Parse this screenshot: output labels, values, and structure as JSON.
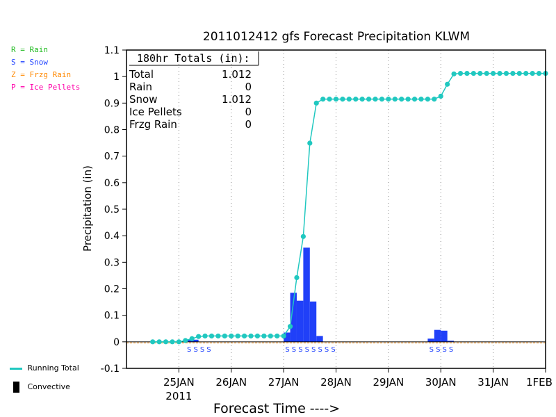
{
  "chart_data": {
    "type": "bar",
    "title": "2011012412 gfs Forecast Precipitation KLWM",
    "xlabel": "Forecast Time ---->",
    "ylabel": "Precipitation (in)",
    "ylim": [
      -0.1,
      1.1
    ],
    "yticks": [
      -0.1,
      0,
      0.1,
      0.2,
      0.3,
      0.4,
      0.5,
      0.6,
      0.7,
      0.8,
      0.9,
      1,
      1.1
    ],
    "ytick_labels": [
      "-0.1",
      "0",
      "0.1",
      "0.2",
      "0.3",
      "0.4",
      "0.5",
      "0.6",
      "0.7",
      "0.8",
      "0.9",
      "1",
      "1.1"
    ],
    "xlim": [
      -12,
      180
    ],
    "xticks": [
      {
        "hour": 12,
        "label": "25JAN",
        "sublabel": "2011"
      },
      {
        "hour": 36,
        "label": "26JAN",
        "sublabel": ""
      },
      {
        "hour": 60,
        "label": "27JAN",
        "sublabel": ""
      },
      {
        "hour": 84,
        "label": "28JAN",
        "sublabel": ""
      },
      {
        "hour": 108,
        "label": "29JAN",
        "sublabel": ""
      },
      {
        "hour": 132,
        "label": "30JAN",
        "sublabel": ""
      },
      {
        "hour": 156,
        "label": "31JAN",
        "sublabel": ""
      },
      {
        "hour": 180,
        "label": "1FEB",
        "sublabel": ""
      }
    ],
    "grid": {
      "vertical_dotted": true
    },
    "totals_box": {
      "heading": "180hr Totals (in):",
      "rows": [
        {
          "label": "Total",
          "value": "1.012"
        },
        {
          "label": "Rain",
          "value": "0"
        },
        {
          "label": "Snow",
          "value": "1.012"
        },
        {
          "label": "Ice Pellets",
          "value": "0"
        },
        {
          "label": "Frzg Rain",
          "value": "0"
        }
      ]
    },
    "precip_type_legend": [
      {
        "text": "R = Rain",
        "color": "#22bb22"
      },
      {
        "text": "S = Snow",
        "color": "#2244ff"
      },
      {
        "text": "Z = Frzg Rain",
        "color": "#ff8800"
      },
      {
        "text": "P = Ice Pellets",
        "color": "#ff00aa"
      }
    ],
    "series": [
      {
        "name": "Running Total",
        "kind": "line",
        "color": "#20c8c0",
        "x": [
          0,
          3,
          6,
          9,
          12,
          15,
          18,
          21,
          24,
          27,
          30,
          33,
          36,
          39,
          42,
          45,
          48,
          51,
          54,
          57,
          60,
          63,
          66,
          69,
          72,
          75,
          78,
          81,
          84,
          87,
          90,
          93,
          96,
          99,
          102,
          105,
          108,
          111,
          114,
          117,
          120,
          123,
          126,
          129,
          132,
          135,
          138,
          141,
          144,
          147,
          150,
          153,
          156,
          159,
          162,
          165,
          168,
          171,
          174,
          177,
          180
        ],
        "y": [
          0,
          0,
          0,
          0,
          0,
          0.005,
          0.012,
          0.02,
          0.022,
          0.022,
          0.022,
          0.022,
          0.022,
          0.022,
          0.022,
          0.022,
          0.022,
          0.022,
          0.022,
          0.022,
          0.022,
          0.058,
          0.242,
          0.397,
          0.749,
          0.9,
          0.915,
          0.915,
          0.915,
          0.915,
          0.915,
          0.915,
          0.915,
          0.915,
          0.915,
          0.915,
          0.915,
          0.915,
          0.915,
          0.915,
          0.915,
          0.915,
          0.915,
          0.915,
          0.926,
          0.971,
          1.01,
          1.012,
          1.012,
          1.012,
          1.012,
          1.012,
          1.012,
          1.012,
          1.012,
          1.012,
          1.012,
          1.012,
          1.012,
          1.012,
          1.012
        ]
      },
      {
        "name": "",
        "kind": "bar",
        "color": "#2040f8",
        "x": [
          18,
          21,
          63,
          66,
          69,
          72,
          75,
          78,
          129,
          132,
          135,
          138
        ],
        "y": [
          0.007,
          0.008,
          0.035,
          0.185,
          0.155,
          0.355,
          0.152,
          0.022,
          0.012,
          0.045,
          0.042,
          0.004
        ]
      }
    ],
    "ptype_markers": {
      "color": "#2244ff",
      "symbol": "S",
      "x": [
        18,
        21,
        24,
        27,
        63,
        66,
        69,
        72,
        75,
        78,
        81,
        84,
        129,
        132,
        135,
        138
      ]
    },
    "bottom_legend": [
      {
        "text": "Running Total",
        "kind": "line",
        "color": "#20c8c0"
      },
      {
        "text": "Convective",
        "kind": "block",
        "color": "#000000"
      }
    ]
  }
}
